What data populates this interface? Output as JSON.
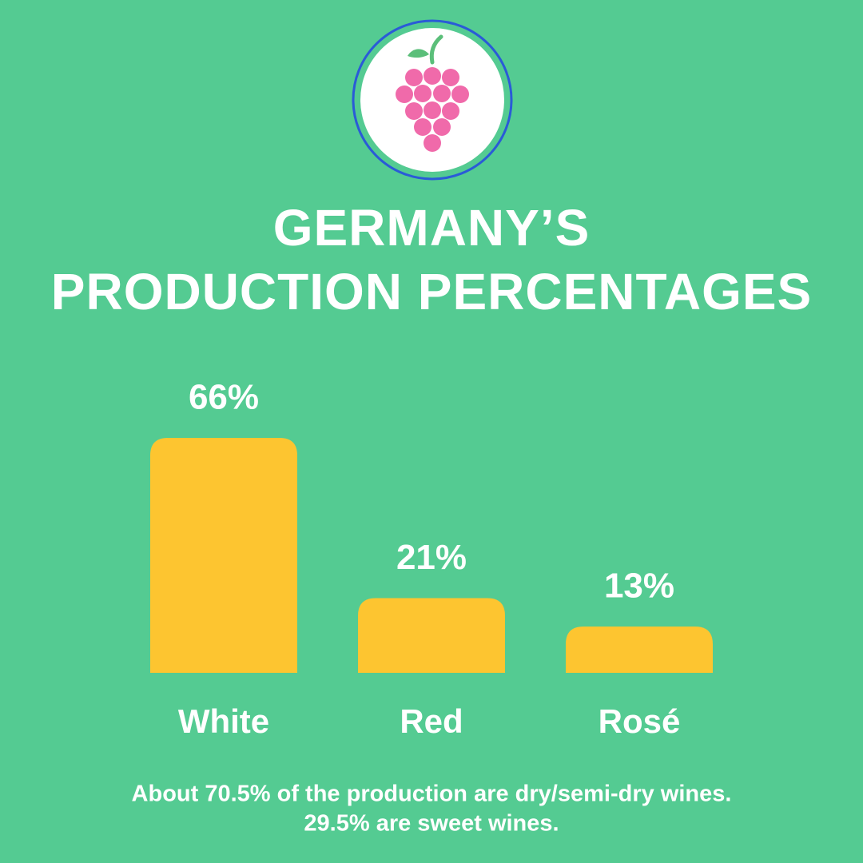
{
  "chart_data": {
    "type": "bar",
    "title": [
      "GERMANY’S",
      "PRODUCTION PERCENTAGES"
    ],
    "categories": [
      "White",
      "Red",
      "Rosé"
    ],
    "values": [
      66,
      21,
      13
    ],
    "value_labels": [
      "66%",
      "21%",
      "13%"
    ],
    "color": "#fdc530",
    "note": [
      "About 70.5% of the production are dry/semi-dry wines.",
      "29.5% are sweet wines."
    ]
  }
}
